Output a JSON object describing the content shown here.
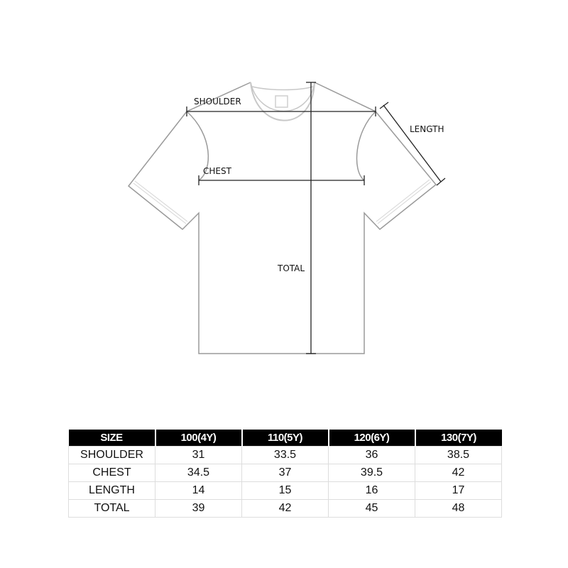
{
  "diagram": {
    "labels": {
      "shoulder": "SHOULDER",
      "chest": "CHEST",
      "length": "LENGTH",
      "total": "TOTAL"
    },
    "outline_color": "#9a9a9a",
    "measure_color": "#222222"
  },
  "size_table": {
    "headers": [
      "SIZE",
      "100(4Y)",
      "110(5Y)",
      "120(6Y)",
      "130(7Y)"
    ],
    "rows": [
      {
        "label": "SHOULDER",
        "values": [
          "31",
          "33.5",
          "36",
          "38.5"
        ]
      },
      {
        "label": "CHEST",
        "values": [
          "34.5",
          "37",
          "39.5",
          "42"
        ]
      },
      {
        "label": "LENGTH",
        "values": [
          "14",
          "15",
          "16",
          "17"
        ]
      },
      {
        "label": "TOTAL",
        "values": [
          "39",
          "42",
          "45",
          "48"
        ]
      }
    ]
  }
}
